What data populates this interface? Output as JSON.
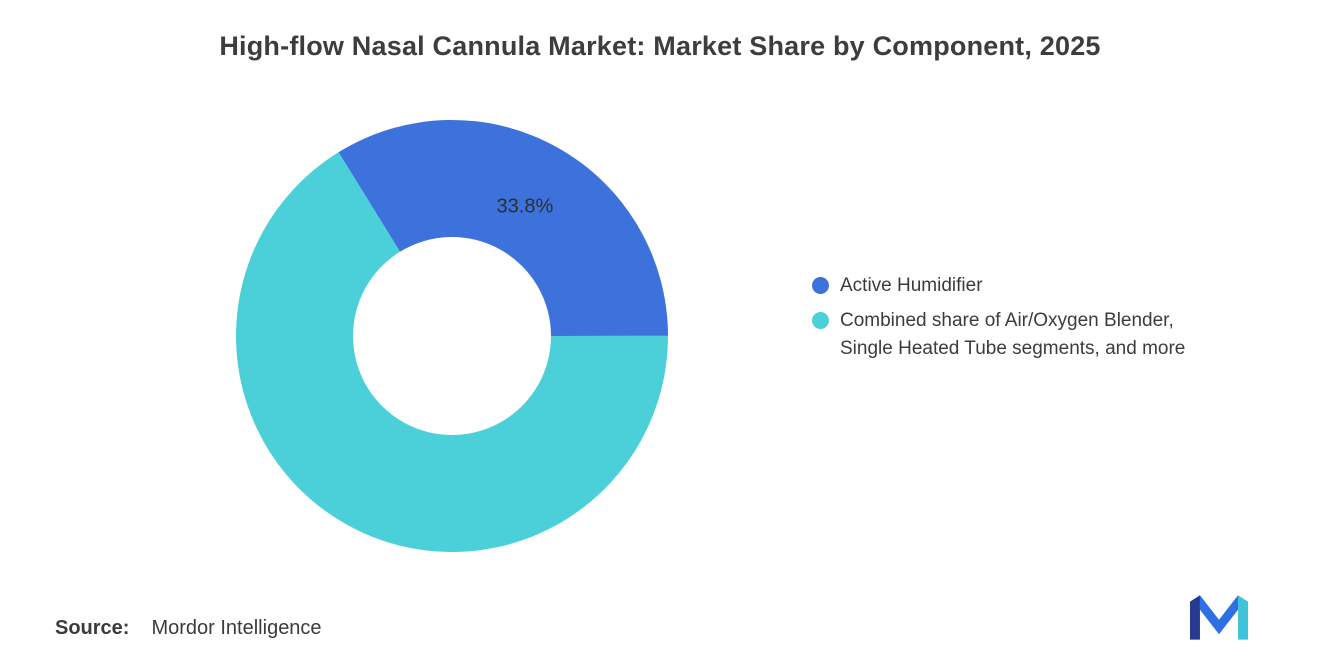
{
  "title": "High-flow Nasal Cannula Market: Market Share by Component, 2025",
  "source": {
    "label": "Source:",
    "value": "Mordor Intelligence"
  },
  "legend": [
    {
      "label": "Active Humidifier",
      "color": "#3d72dd"
    },
    {
      "label": "Combined share of Air/Oxygen Blender, Single Heated Tube segments, and more",
      "color": "#4bd0da"
    }
  ],
  "logo_name": "mordor-intelligence-logo",
  "chart_data": {
    "type": "pie",
    "donut": true,
    "title": "High-flow Nasal Cannula Market: Market Share by Component, 2025",
    "legend_position": "right",
    "start_angle_deg": -31.7,
    "inner_radius_ratio": 0.46,
    "series": [
      {
        "name": "Active Humidifier",
        "value": 33.8,
        "color": "#3d72dd",
        "data_label": "33.8%"
      },
      {
        "name": "Combined share of Air/Oxygen Blender, Single Heated Tube segments, and more",
        "value": 66.2,
        "color": "#4bd0da",
        "data_label": ""
      }
    ]
  }
}
